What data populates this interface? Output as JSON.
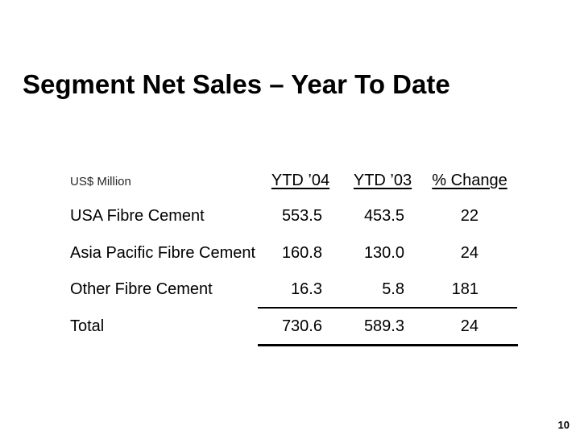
{
  "slide": {
    "title": "Segment Net Sales – Year To Date",
    "page_number": "10",
    "colors": {
      "background": "#ffffff",
      "text": "#000000",
      "unit_label_text": "#262626",
      "rule": "#000000"
    }
  },
  "table": {
    "unit_label": "US$ Million",
    "columns": [
      {
        "label": "YTD ’04"
      },
      {
        "label": "YTD ’03"
      },
      {
        "label": "% Change"
      }
    ],
    "rows": [
      {
        "label": "USA Fibre Cement",
        "ytd04": "553.5",
        "ytd03": "453.5",
        "change": "22"
      },
      {
        "label": "Asia Pacific Fibre Cement",
        "ytd04": "160.8",
        "ytd03": "130.0",
        "change": "24"
      },
      {
        "label": "Other Fibre Cement",
        "ytd04": "16.3",
        "ytd03": "5.8",
        "change": "181"
      }
    ],
    "total_row": {
      "label": "Total",
      "ytd04": "730.6",
      "ytd03": "589.3",
      "change": "24"
    }
  }
}
